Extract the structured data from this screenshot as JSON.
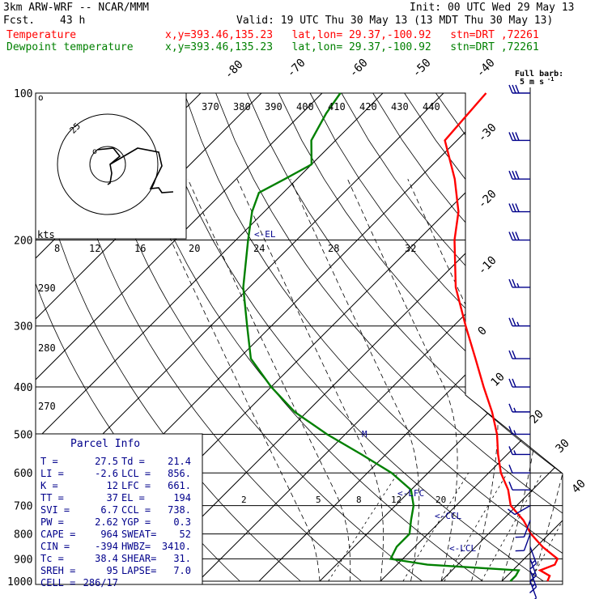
{
  "header": {
    "model": "3km ARW-WRF -- NCAR/MMM",
    "init": "Init: 00 UTC Wed 29 May 13",
    "fcst_label": "Fcst.",
    "fcst_value": "43 h",
    "valid": "Valid: 19 UTC Thu 30 May 13 (13 MDT Thu 30 May 13)",
    "temp_label": "Temperature",
    "dew_label": "Dewpoint temperature",
    "loc": "x,y=393.46,135.23   lat,lon= 29.37,-100.92   stn=DRT ,72261",
    "temp_color": "#ff0000",
    "dew_color": "#008000"
  },
  "barb_title": {
    "line1": "Full barb:",
    "line2": "5 m s",
    "sup": "-1"
  },
  "parcel": {
    "title": "Parcel Info",
    "rows": [
      [
        "T    =",
        "27.5",
        "Td  =",
        "21.4"
      ],
      [
        "LI   =",
        "-2.6",
        "LCL =",
        "856."
      ],
      [
        "K    =",
        "12",
        "LFC =",
        "661."
      ],
      [
        "TT   =",
        "37",
        "EL  =",
        "194"
      ],
      [
        "SVI  =",
        "6.7",
        "CCL =",
        "738."
      ],
      [
        "PW   =",
        "2.62",
        "YGP =",
        "0.3"
      ],
      [
        "CAPE =",
        "964",
        "SWEAT=",
        "52"
      ],
      [
        "CIN  =",
        "-394",
        "HWBZ=",
        "3410."
      ],
      [
        "Tc   =",
        "38.4",
        "SHEAR=",
        "31."
      ],
      [
        "SREH =",
        "95",
        "LAPSE=",
        "7.0"
      ],
      [
        "CELL =",
        "286/17",
        "",
        ""
      ]
    ]
  },
  "annotations": {
    "el": "<-EL",
    "lfc": "<-LFC",
    "ccl": "<-CCL",
    "lcl": "<-LCL",
    "m": "M"
  },
  "hodograph": {
    "unit_label": "kts",
    "ring_label": "25"
  },
  "chart_data": {
    "type": "skew-t",
    "y_axis": "pressure (hPa), log scale",
    "pressure_ticks": [
      100,
      200,
      300,
      400,
      500,
      600,
      700,
      800,
      900,
      1000
    ],
    "isotherm_labels": [
      "-80",
      "-70",
      "-60",
      "-50",
      "-40",
      "-30",
      "-20",
      "-10",
      "0",
      "10",
      "20",
      "30",
      "40"
    ],
    "theta_e_labels": [
      "370",
      "380",
      "390",
      "400",
      "410",
      "420",
      "430",
      "440"
    ],
    "theta_e_left_labels": [
      "290",
      "280",
      "270"
    ],
    "mixing_ratio_upper_labels": [
      "8",
      "12",
      "16",
      "20",
      "24",
      "28",
      "32"
    ],
    "mixing_ratio_lower_labels": [
      "2",
      "5",
      "8",
      "12",
      "20"
    ],
    "series": [
      {
        "name": "Temperature",
        "color": "#ff0000",
        "points": [
          [
            1000,
            27.5
          ],
          [
            975,
            27
          ],
          [
            950,
            24.5
          ],
          [
            925,
            26
          ],
          [
            900,
            25.5
          ],
          [
            850,
            21
          ],
          [
            800,
            17
          ],
          [
            750,
            13.5
          ],
          [
            700,
            9
          ],
          [
            650,
            6
          ],
          [
            600,
            2
          ],
          [
            550,
            -1.5
          ],
          [
            500,
            -5
          ],
          [
            450,
            -9.5
          ],
          [
            400,
            -15
          ],
          [
            350,
            -21
          ],
          [
            300,
            -28
          ],
          [
            250,
            -36
          ],
          [
            200,
            -44
          ],
          [
            175,
            -48
          ],
          [
            150,
            -54
          ],
          [
            125,
            -62
          ],
          [
            100,
            -63
          ]
        ]
      },
      {
        "name": "Dewpoint temperature",
        "color": "#008000",
        "points": [
          [
            1000,
            21.4
          ],
          [
            975,
            21.4
          ],
          [
            950,
            21
          ],
          [
            925,
            5
          ],
          [
            900,
            -2
          ],
          [
            850,
            -3
          ],
          [
            800,
            -3
          ],
          [
            750,
            -5
          ],
          [
            700,
            -7
          ],
          [
            650,
            -10
          ],
          [
            600,
            -16
          ],
          [
            550,
            -24
          ],
          [
            500,
            -33
          ],
          [
            450,
            -42
          ],
          [
            400,
            -50
          ],
          [
            350,
            -58
          ],
          [
            300,
            -64
          ],
          [
            250,
            -71
          ],
          [
            200,
            -78
          ],
          [
            175,
            -82
          ],
          [
            160,
            -84
          ],
          [
            150,
            -82
          ],
          [
            140,
            -80
          ],
          [
            125,
            -84
          ],
          [
            110,
            -86
          ],
          [
            100,
            -87
          ]
        ]
      }
    ],
    "wind_barbs": [
      {
        "p": 100,
        "dir": "W",
        "kt": 30
      },
      {
        "p": 125,
        "dir": "W",
        "kt": 30
      },
      {
        "p": 150,
        "dir": "W",
        "kt": 30
      },
      {
        "p": 175,
        "dir": "W",
        "kt": 30
      },
      {
        "p": 200,
        "dir": "W",
        "kt": 30
      },
      {
        "p": 250,
        "dir": "W",
        "kt": 25
      },
      {
        "p": 300,
        "dir": "W",
        "kt": 25
      },
      {
        "p": 350,
        "dir": "W",
        "kt": 20
      },
      {
        "p": 400,
        "dir": "W",
        "kt": 20
      },
      {
        "p": 450,
        "dir": "W",
        "kt": 15
      },
      {
        "p": 500,
        "dir": "W",
        "kt": 15
      },
      {
        "p": 550,
        "dir": "W",
        "kt": 15
      },
      {
        "p": 600,
        "dir": "W",
        "kt": 10
      },
      {
        "p": 650,
        "dir": "W",
        "kt": 10
      },
      {
        "p": 700,
        "dir": "SW",
        "kt": 10
      },
      {
        "p": 750,
        "dir": "S",
        "kt": 10
      },
      {
        "p": 800,
        "dir": "S",
        "kt": 10
      },
      {
        "p": 850,
        "dir": "SE",
        "kt": 15
      },
      {
        "p": 900,
        "dir": "SE",
        "kt": 15
      },
      {
        "p": 950,
        "dir": "SE",
        "kt": 15
      },
      {
        "p": 1000,
        "dir": "SE",
        "kt": 10
      }
    ]
  }
}
